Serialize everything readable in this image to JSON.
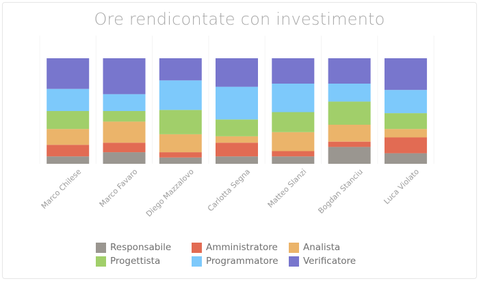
{
  "colors": {
    "Responsabile": "#9a9690",
    "Amministratore": "#e26b53",
    "Analista": "#ebb46a",
    "Progettista": "#a1cf6a",
    "Programmatore": "#7dc9fb",
    "Verificatore": "#7876cd"
  },
  "chart_data": {
    "type": "bar",
    "stacked": true,
    "normalized_100_percent": true,
    "title": "Ore rendicontate con investimento",
    "xlabel": "",
    "ylabel": "",
    "grid": false,
    "legend_position": "bottom",
    "categories": [
      "Marco Chilese",
      "Marco Favaro",
      "Diego Mazzalovo",
      "Carlotta Segna",
      "Matteo Slanzi",
      "Bogdan Stanciu",
      "Luca Violato"
    ],
    "series": [
      {
        "name": "Responsabile",
        "values": [
          7,
          11,
          6,
          7,
          7,
          16,
          10
        ]
      },
      {
        "name": "Amministratore",
        "values": [
          11,
          9,
          5,
          13,
          5,
          5,
          15
        ]
      },
      {
        "name": "Analista",
        "values": [
          15,
          20,
          17,
          6,
          18,
          16,
          8
        ]
      },
      {
        "name": "Progettista",
        "values": [
          17,
          10,
          23,
          16,
          19,
          22,
          15
        ]
      },
      {
        "name": "Programmatore",
        "values": [
          21,
          16,
          28,
          31,
          27,
          17,
          22
        ]
      },
      {
        "name": "Verificatore",
        "values": [
          29,
          34,
          21,
          27,
          24,
          24,
          30
        ]
      }
    ]
  },
  "legend": [
    {
      "label": "Responsabile"
    },
    {
      "label": "Amministratore"
    },
    {
      "label": "Analista"
    },
    {
      "label": "Progettista"
    },
    {
      "label": "Programmatore"
    },
    {
      "label": "Verificatore"
    }
  ]
}
